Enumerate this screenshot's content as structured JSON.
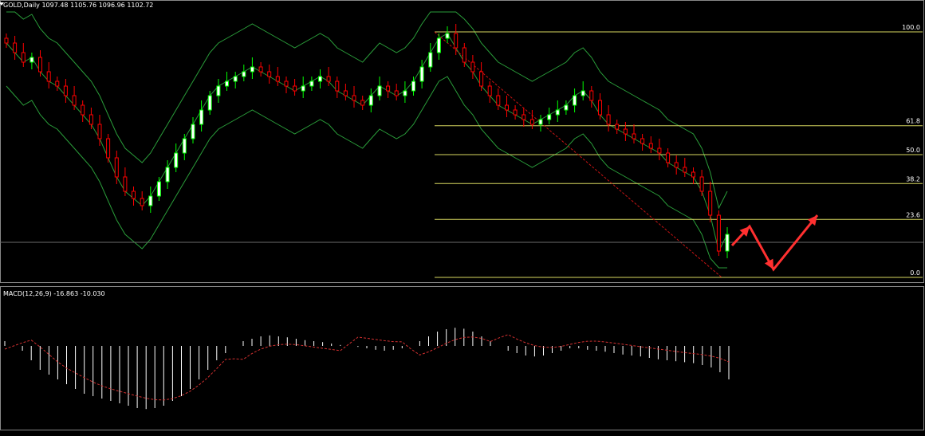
{
  "header": {
    "symbol_info": "GOLD,Daily  1097.48 1105.76 1096.96 1102.72"
  },
  "macd": {
    "label": "MACD(12,26,9) -16.863 -10.030"
  },
  "colors": {
    "background": "#000000",
    "bull_candle": "#00ff00",
    "bull_body": "#ffffff",
    "bear_candle": "#ff0000",
    "bear_body": "#000000",
    "bands": "#2a9d3a",
    "fib_lines": "#d8d860",
    "trend_line": "#c81414",
    "macd_hist": "#ffffff",
    "macd_signal": "#d23030",
    "arrows": "#ff3030",
    "price_line": "#6b6b6b"
  },
  "chart_data": {
    "type": "candlestick",
    "symbol": "GOLD",
    "timeframe": "Daily",
    "ohlc_header": {
      "open": 1097.48,
      "high": 1105.76,
      "low": 1096.96,
      "close": 1102.72
    },
    "fibonacci_levels": [
      {
        "label": "100.0",
        "value": 1.0
      },
      {
        "label": "61.8",
        "value": 0.618
      },
      {
        "label": "50.0",
        "value": 0.5
      },
      {
        "label": "38.2",
        "value": 0.382
      },
      {
        "label": "23.6",
        "value": 0.236
      },
      {
        "label": "0.0",
        "value": 0.0
      }
    ],
    "indicators": [
      "Bollinger Bands",
      "MACD(12,26,9)"
    ],
    "macd_values": {
      "main": -16.863,
      "signal": -10.03
    },
    "candles_close_trend": [
      0.92,
      0.88,
      0.84,
      0.86,
      0.8,
      0.76,
      0.74,
      0.7,
      0.66,
      0.62,
      0.58,
      0.52,
      0.44,
      0.36,
      0.3,
      0.27,
      0.24,
      0.28,
      0.34,
      0.4,
      0.46,
      0.52,
      0.58,
      0.64,
      0.7,
      0.74,
      0.76,
      0.78,
      0.8,
      0.82,
      0.8,
      0.78,
      0.76,
      0.74,
      0.72,
      0.74,
      0.76,
      0.78,
      0.76,
      0.72,
      0.7,
      0.68,
      0.66,
      0.7,
      0.74,
      0.72,
      0.7,
      0.72,
      0.76,
      0.82,
      0.88,
      0.94,
      0.96,
      0.9,
      0.84,
      0.8,
      0.74,
      0.7,
      0.66,
      0.64,
      0.62,
      0.6,
      0.58,
      0.6,
      0.62,
      0.64,
      0.66,
      0.7,
      0.72,
      0.68,
      0.62,
      0.58,
      0.56,
      0.54,
      0.52,
      0.5,
      0.48,
      0.46,
      0.42,
      0.4,
      0.38,
      0.36,
      0.3,
      0.2,
      0.05,
      0.12
    ],
    "macd_hist": [
      0.1,
      0.0,
      -0.1,
      -0.3,
      -0.5,
      -0.6,
      -0.7,
      -0.8,
      -0.9,
      -1.0,
      -1.05,
      -1.1,
      -1.15,
      -1.2,
      -1.25,
      -1.3,
      -1.32,
      -1.3,
      -1.25,
      -1.15,
      -1.05,
      -0.9,
      -0.7,
      -0.5,
      -0.3,
      -0.15,
      0.0,
      0.1,
      0.15,
      0.2,
      0.22,
      0.2,
      0.18,
      0.15,
      0.12,
      0.1,
      0.08,
      0.05,
      0.02,
      0.0,
      -0.02,
      -0.05,
      -0.08,
      -0.1,
      -0.08,
      -0.05,
      0.0,
      0.1,
      0.2,
      0.3,
      0.35,
      0.38,
      0.36,
      0.3,
      0.2,
      0.1,
      0.0,
      -0.1,
      -0.15,
      -0.2,
      -0.22,
      -0.2,
      -0.15,
      -0.1,
      -0.05,
      -0.05,
      -0.08,
      -0.1,
      -0.12,
      -0.15,
      -0.18,
      -0.2,
      -0.22,
      -0.25,
      -0.28,
      -0.3,
      -0.32,
      -0.34,
      -0.36,
      -0.4,
      -0.45,
      -0.55,
      -0.7
    ]
  }
}
